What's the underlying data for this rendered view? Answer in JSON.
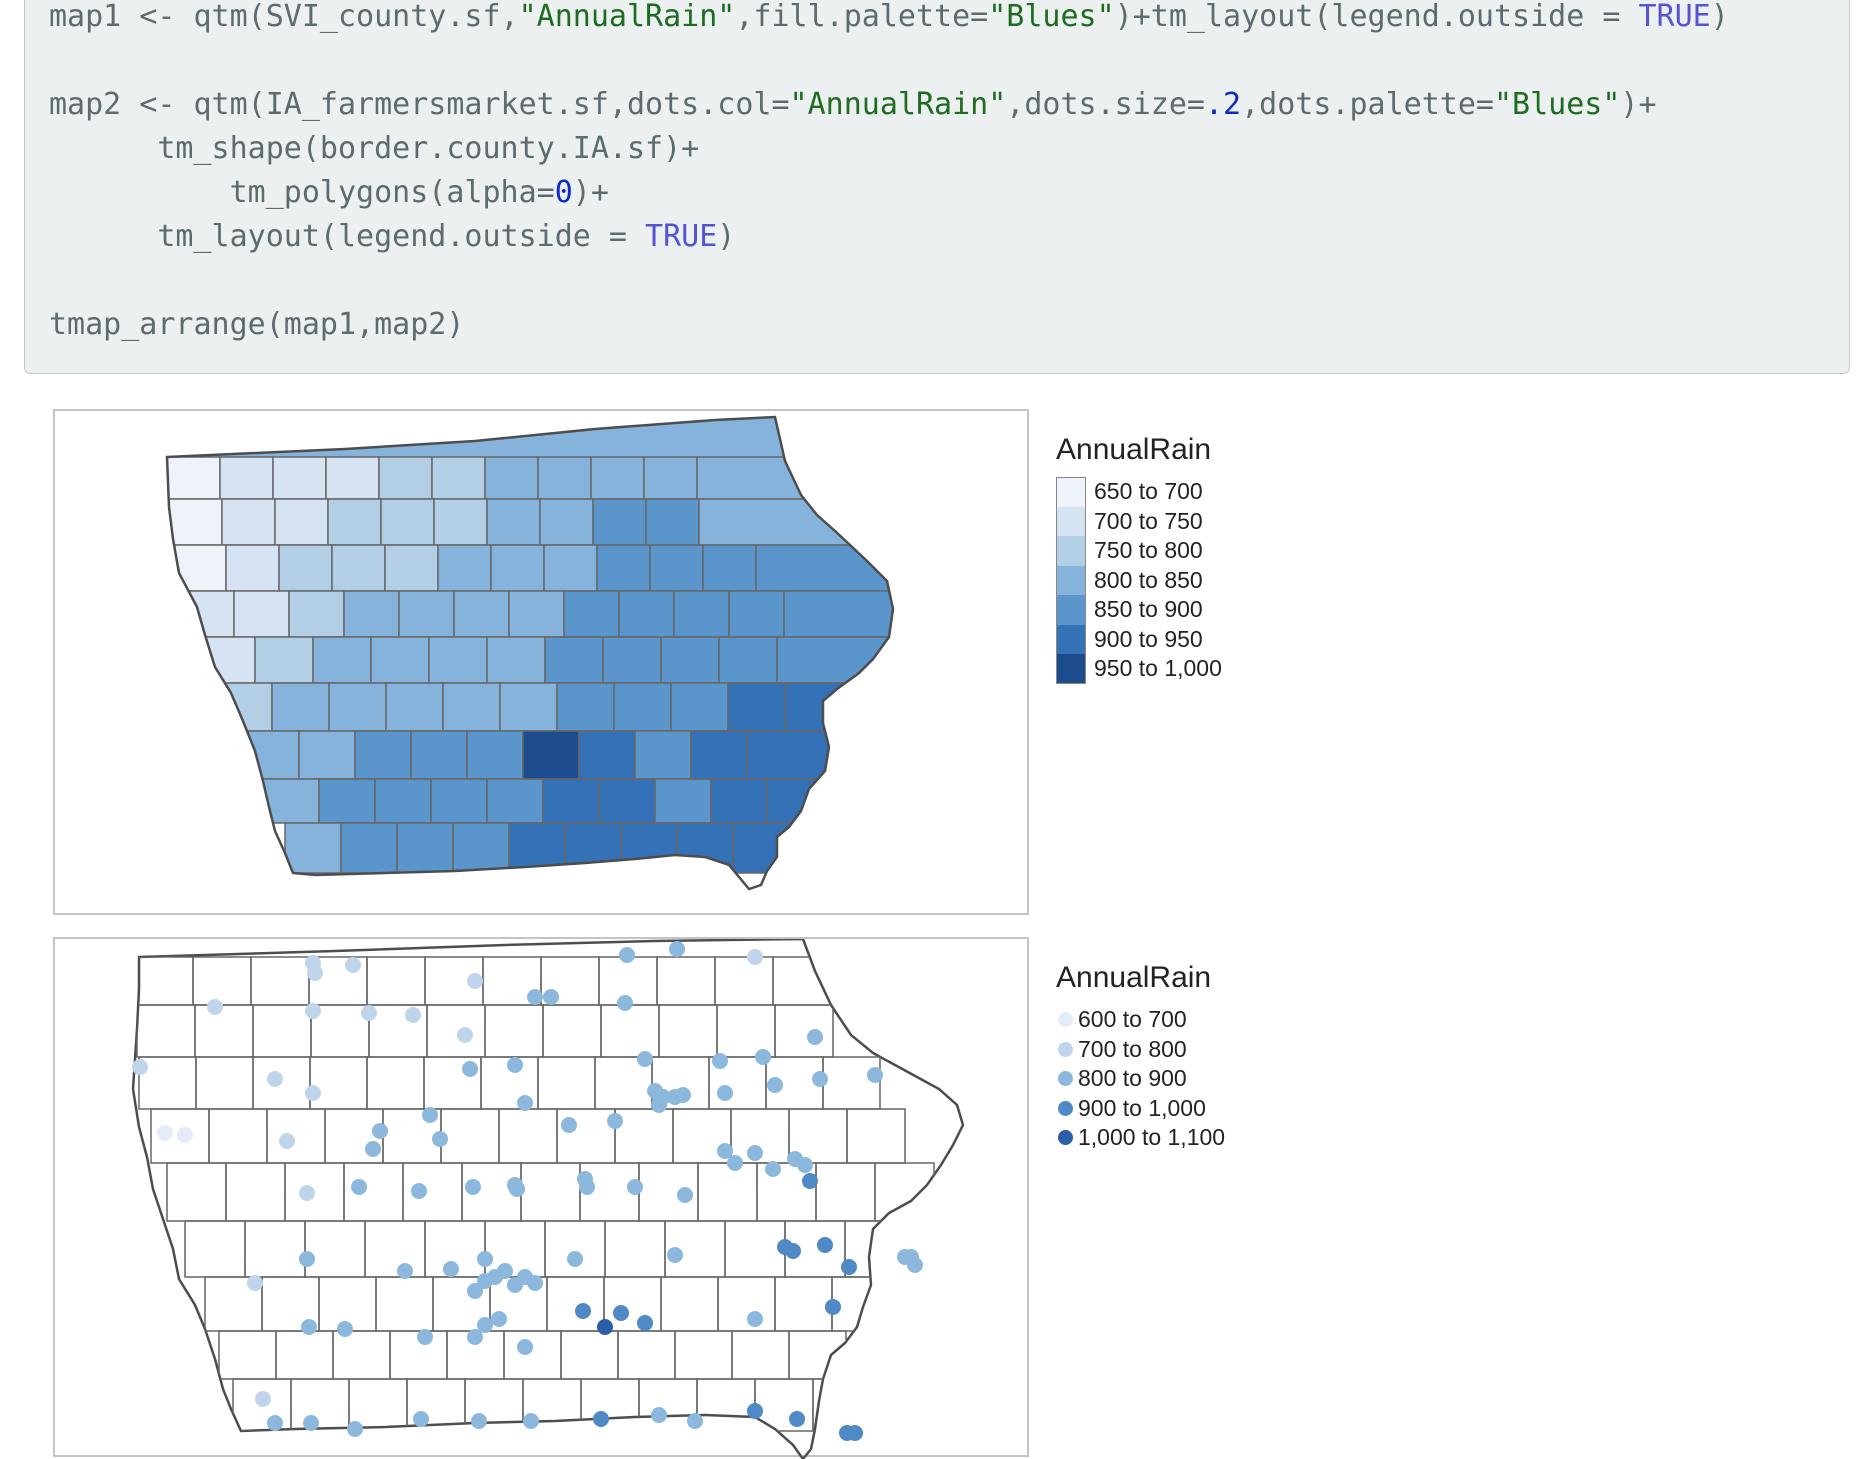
{
  "code": {
    "line1": [
      {
        "t": "map1 <- qtm(SVI_county.sf,",
        "c": "p"
      },
      {
        "t": "\"AnnualRain\"",
        "c": "s"
      },
      {
        "t": ",fill.palette=",
        "c": "p"
      },
      {
        "t": "\"Blues\"",
        "c": "s"
      },
      {
        "t": ")+tm_layout(legend.outside = ",
        "c": "p"
      },
      {
        "t": "TRUE",
        "c": "k"
      },
      {
        "t": ")",
        "c": "p"
      }
    ],
    "line2": [
      {
        "t": "map2 <- qtm(IA_farmersmarket.sf,dots.col=",
        "c": "p"
      },
      {
        "t": "\"AnnualRain\"",
        "c": "s"
      },
      {
        "t": ",dots.size=",
        "c": "p"
      },
      {
        "t": ".2",
        "c": "n"
      },
      {
        "t": ",dots.palette=",
        "c": "p"
      },
      {
        "t": "\"Blues\"",
        "c": "s"
      },
      {
        "t": ")+",
        "c": "p"
      }
    ],
    "line3": [
      {
        "t": "      tm_shape(border.county.IA.sf)+",
        "c": "p"
      }
    ],
    "line4": [
      {
        "t": "          tm_polygons(alpha=",
        "c": "p"
      },
      {
        "t": "0",
        "c": "n"
      },
      {
        "t": ")+",
        "c": "p"
      }
    ],
    "line5": [
      {
        "t": "      tm_layout(legend.outside = ",
        "c": "p"
      },
      {
        "t": "TRUE",
        "c": "k"
      },
      {
        "t": ")",
        "c": "p"
      }
    ],
    "line6": [
      {
        "t": "tmap_arrange(map1,map2)",
        "c": "p"
      }
    ]
  },
  "map1": {
    "legend_title": "AnnualRain",
    "classes": [
      {
        "label": "650 to 700",
        "color": "#eef3fb"
      },
      {
        "label": "700 to 750",
        "color": "#d6e3f2"
      },
      {
        "label": "750 to 800",
        "color": "#b2cfe6"
      },
      {
        "label": "800 to 850",
        "color": "#86b3dc"
      },
      {
        "label": "850 to 900",
        "color": "#5a96cb"
      },
      {
        "label": "900 to 950",
        "color": "#3571b7"
      },
      {
        "label": "950 to 1,000",
        "color": "#1c4c8d"
      }
    ]
  },
  "map2": {
    "legend_title": "AnnualRain",
    "classes": [
      {
        "label": "600 to 700",
        "color": "#e3ecf8"
      },
      {
        "label": "700 to 800",
        "color": "#c0d5ec"
      },
      {
        "label": "800 to 900",
        "color": "#8cb8de"
      },
      {
        "label": "900 to 1,000",
        "color": "#4f8ac6"
      },
      {
        "label": "1,000 to 1,100",
        "color": "#2a5ea6"
      }
    ]
  }
}
